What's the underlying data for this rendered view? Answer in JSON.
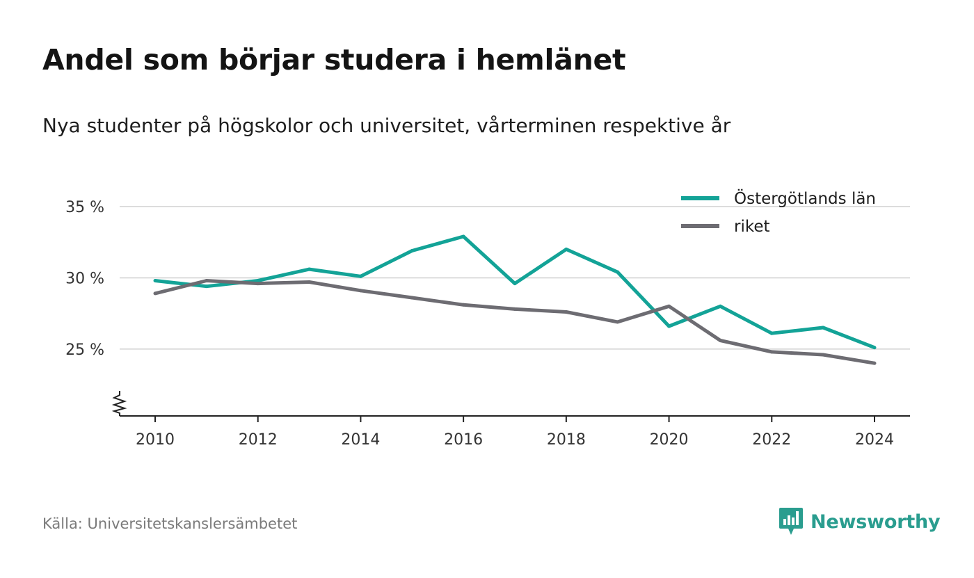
{
  "title": "Andel som börjar studera i hemlänet",
  "subtitle": "Nya studenter på högskolor och universitet, vårterminen respektive år",
  "source": "Källa: Universitetskanslersämbetet",
  "brand": {
    "name": "Newsworthy",
    "color": "#2a9d8f",
    "icon": "chart-speech-bubble-icon"
  },
  "chart_data": {
    "type": "line",
    "x": [
      2010,
      2011,
      2012,
      2013,
      2014,
      2015,
      2016,
      2017,
      2018,
      2019,
      2020,
      2021,
      2022,
      2023,
      2024
    ],
    "series": [
      {
        "name": "Östergötlands län",
        "color": "#13a397",
        "values": [
          29.8,
          29.4,
          29.8,
          30.6,
          30.1,
          31.9,
          32.9,
          29.6,
          32.0,
          30.4,
          26.6,
          28.0,
          26.1,
          26.5,
          25.1
        ]
      },
      {
        "name": "riket",
        "color": "#6d6c72",
        "values": [
          28.9,
          29.8,
          29.6,
          29.7,
          29.1,
          28.6,
          28.1,
          27.8,
          27.6,
          26.9,
          28.0,
          25.6,
          24.8,
          24.6,
          24.0
        ]
      }
    ],
    "ylim": [
      20.3,
      35
    ],
    "yticks": [
      25,
      30,
      35
    ],
    "ytick_labels": [
      "25 %",
      "30 %",
      "35 %"
    ],
    "xticks": [
      2010,
      2012,
      2014,
      2016,
      2018,
      2020,
      2022,
      2024
    ],
    "xtick_labels": [
      "2010",
      "2012",
      "2014",
      "2016",
      "2018",
      "2020",
      "2022",
      "2024"
    ],
    "y_axis_break": true,
    "grid": true,
    "legend_position": "top-right"
  }
}
